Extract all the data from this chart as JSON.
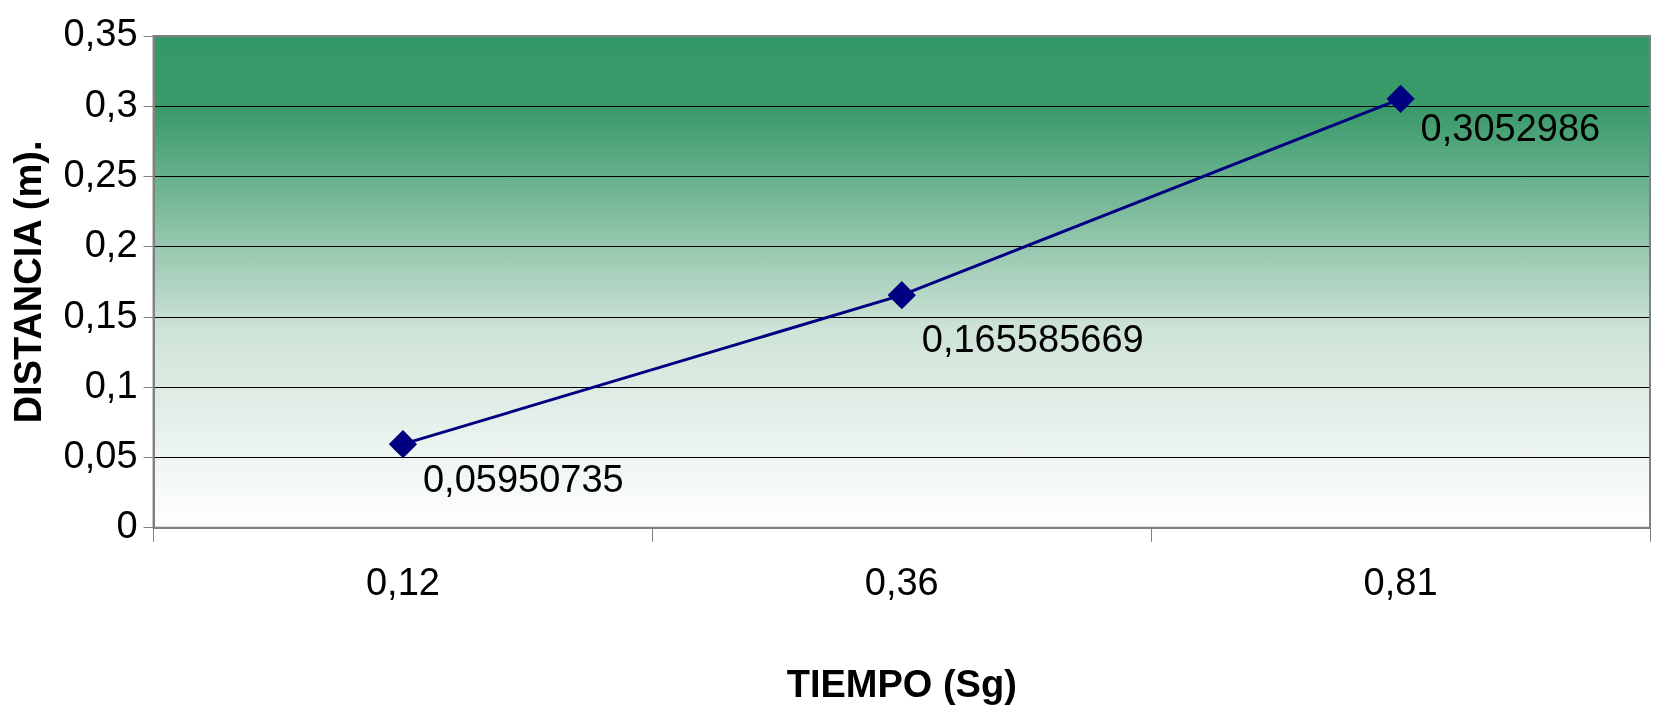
{
  "chart_data": {
    "type": "line",
    "xlabel": "TIEMPO (Sg)",
    "ylabel": "DISTANCIA (m).",
    "categories": [
      "0,12",
      "0,36",
      "0,81"
    ],
    "series": [
      {
        "color": "#000080",
        "values": [
          0.05950735,
          0.165585669,
          0.3052986
        ],
        "value_labels": [
          "0,05950735",
          "0,165585669",
          "0,3052986"
        ]
      }
    ],
    "ylim": [
      0,
      0.35
    ],
    "yticks": [
      0,
      {
        "value": 0.05,
        "label": "0,05"
      },
      {
        "value": 0.1,
        "label": "0,1"
      },
      {
        "value": 0.15,
        "label": "0,15"
      },
      {
        "value": 0.2,
        "label": "0,2"
      },
      {
        "value": 0.25,
        "label": "0,25"
      },
      {
        "value": 0.3,
        "label": "0,3"
      },
      {
        "value": 0.35,
        "label": "0,35"
      }
    ],
    "grid": "y",
    "legend": false,
    "marker": "diamond",
    "line_style": "solid"
  }
}
